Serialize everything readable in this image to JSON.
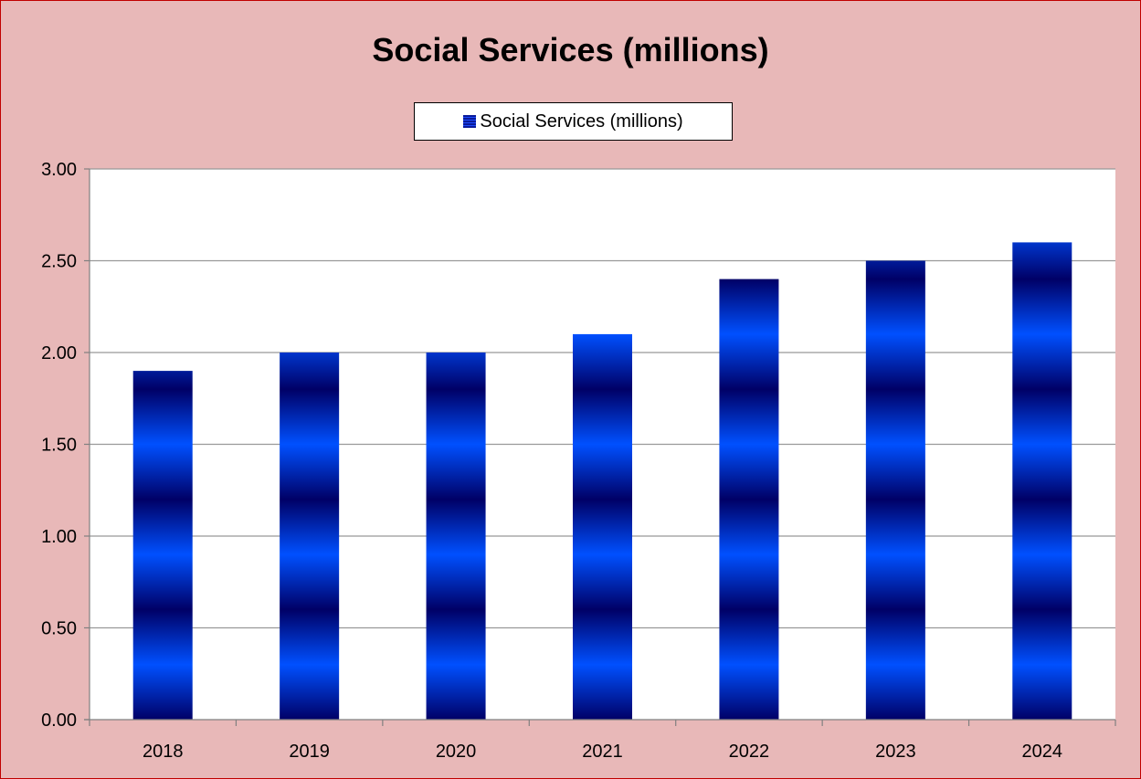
{
  "chart_data": {
    "type": "bar",
    "title": "Social Services (millions)",
    "categories": [
      "2018",
      "2019",
      "2020",
      "2021",
      "2022",
      "2023",
      "2024"
    ],
    "series": [
      {
        "name": "Social Services (millions)",
        "values": [
          1.9,
          2.0,
          2.0,
          2.1,
          2.4,
          2.5,
          2.6
        ]
      }
    ],
    "ylim": [
      0,
      3
    ],
    "yticks": [
      "0.00",
      "0.50",
      "1.00",
      "1.50",
      "2.00",
      "2.50",
      "3.00"
    ],
    "grid": true,
    "legend": "top-center",
    "colors": {
      "bar_dark": "#000066",
      "bar_light": "#0050ff",
      "background": "#e8b8b8",
      "border": "#c00000",
      "grid": "#999999"
    }
  }
}
